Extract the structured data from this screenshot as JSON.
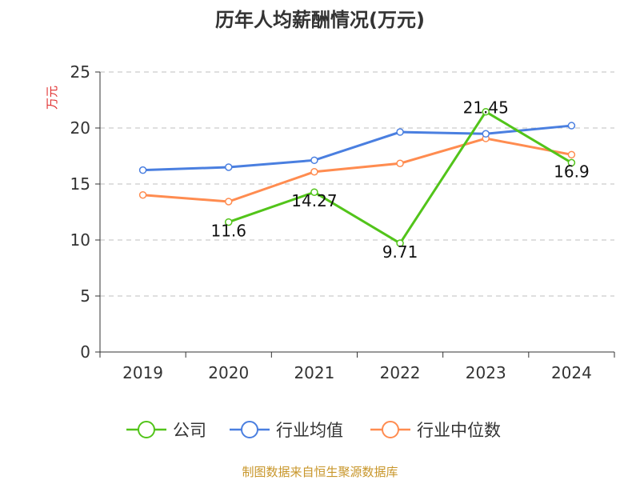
{
  "chart_data": {
    "type": "line",
    "title": "历年人均薪酬情况(万元)",
    "ylabel": "万元",
    "xlabel": "",
    "categories": [
      "2019",
      "2020",
      "2021",
      "2022",
      "2023",
      "2024"
    ],
    "ylim": [
      0,
      25
    ],
    "yticks": [
      0,
      5,
      10,
      15,
      20,
      25
    ],
    "grid": true,
    "legend_position": "bottom",
    "series": [
      {
        "name": "公司",
        "color": "#52c41a",
        "values": [
          null,
          11.6,
          14.27,
          9.71,
          21.45,
          16.9
        ],
        "labels": [
          "",
          "11.6",
          "14.27",
          "9.71",
          "21.45",
          "16.9"
        ]
      },
      {
        "name": "行业均值",
        "color": "#4a7fe0",
        "values": [
          16.24,
          16.5,
          17.12,
          19.64,
          19.48,
          20.21
        ]
      },
      {
        "name": "行业中位数",
        "color": "#ff8c50",
        "values": [
          14.02,
          13.43,
          16.09,
          16.84,
          19.07,
          17.62
        ]
      }
    ]
  },
  "footer": "制图数据来自恒生聚源数据库"
}
